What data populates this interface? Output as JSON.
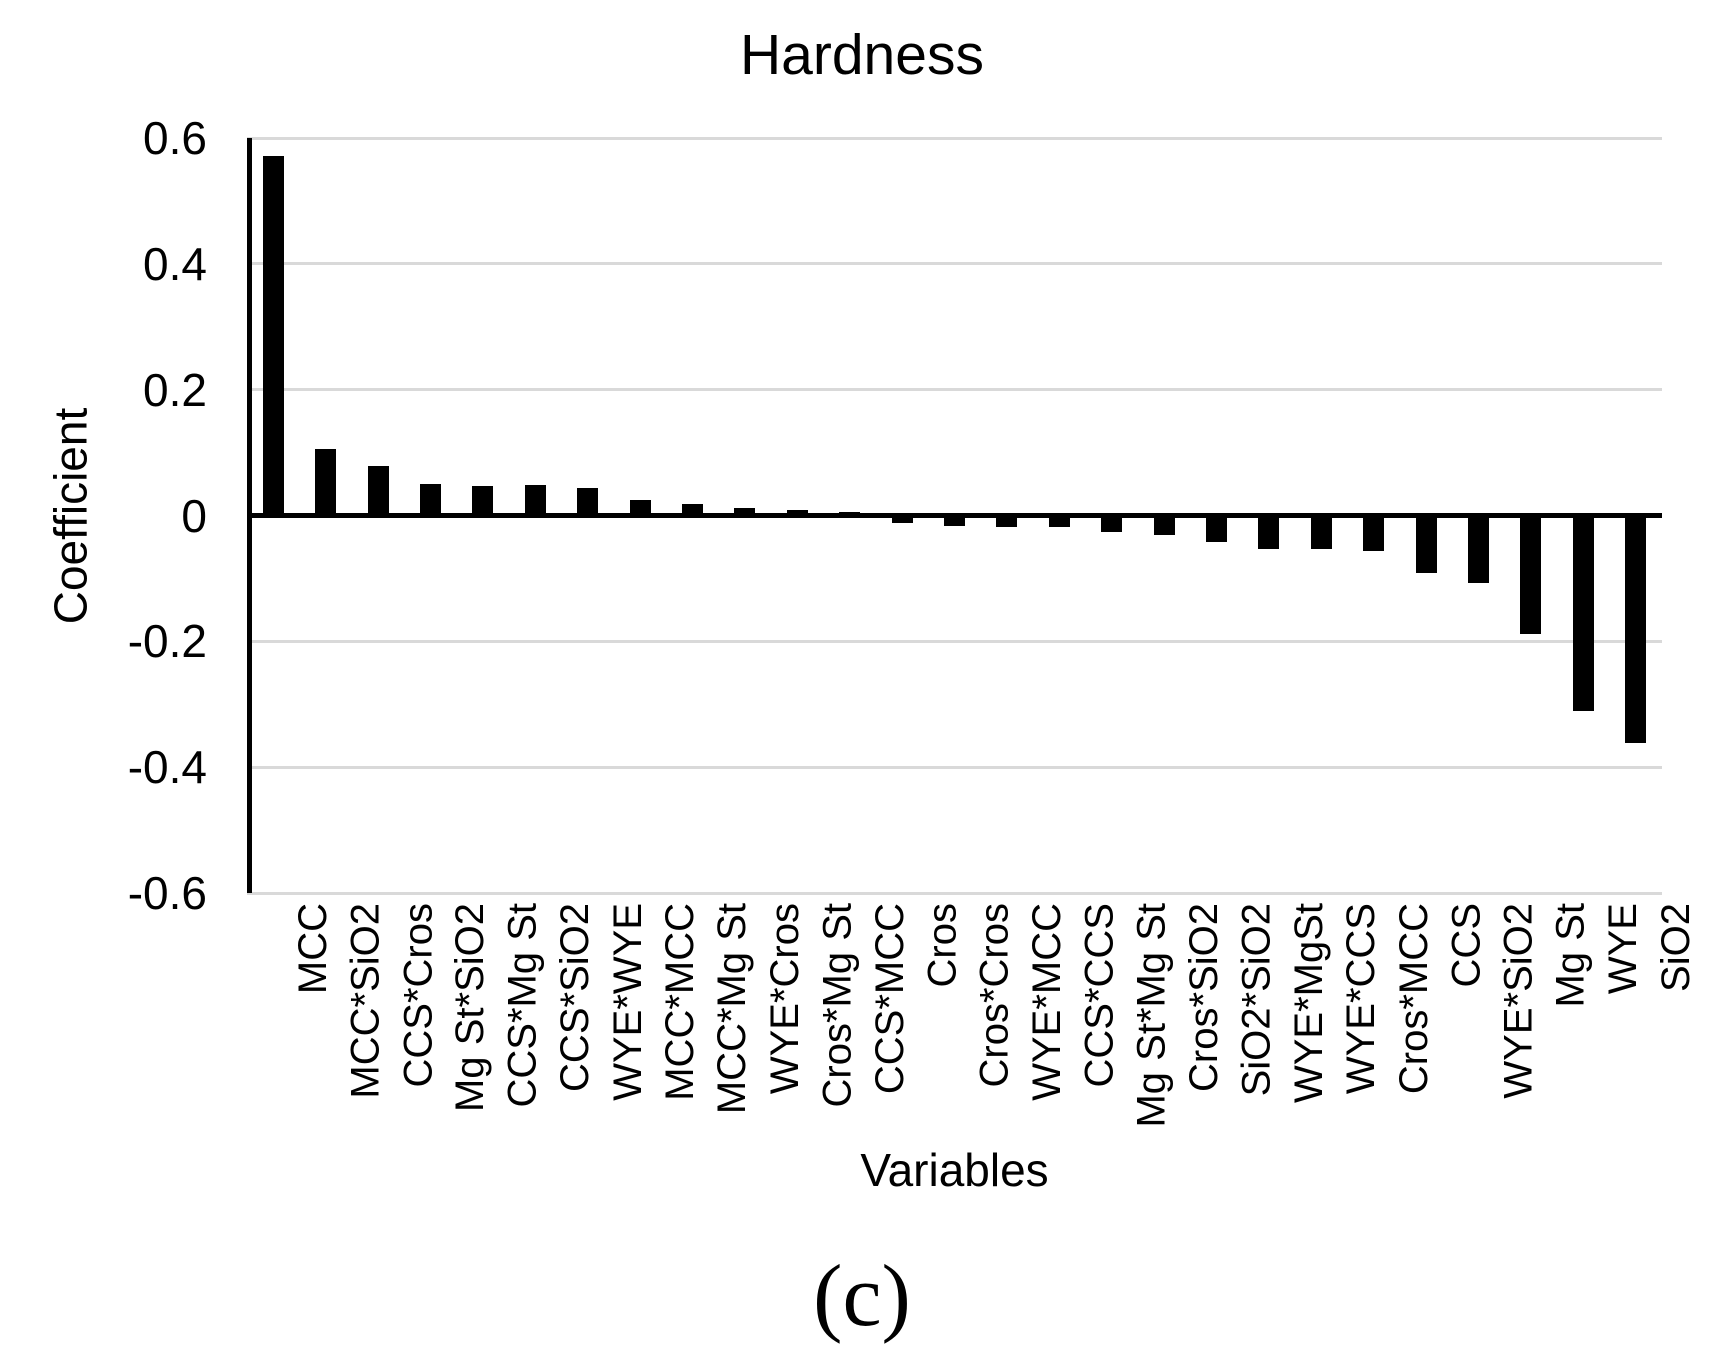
{
  "caption": "(c)",
  "chart_data": {
    "type": "bar",
    "title": "Hardness",
    "xlabel": "Variables",
    "ylabel": "Coefficient",
    "ylim": [
      -0.6,
      0.6
    ],
    "ytick_labels": [
      "0.6",
      "0.4",
      "0.2",
      "0",
      "-0.2",
      "-0.4",
      "-0.6"
    ],
    "ytick_values": [
      0.6,
      0.4,
      0.2,
      0,
      -0.2,
      -0.4,
      -0.6
    ],
    "grid": true,
    "legend_position": "none",
    "bar_color": "#000000",
    "gridline_color": "#d9d9d9",
    "categories": [
      "MCC",
      "MCC*SiO2",
      "CCS*Cros",
      "Mg St*SiO2",
      "CCS*Mg St",
      "CCS*SiO2",
      "WYE*WYE",
      "MCC*MCC",
      "MCC*Mg St",
      "WYE*Cros",
      "Cros*Mg St",
      "CCS*MCC",
      "Cros",
      "Cros*Cros",
      "WYE*MCC",
      "CCS*CCS",
      "Mg St*Mg St",
      "Cros*SiO2",
      "SiO2*SiO2",
      "WYE*MgSt",
      "WYE*CCS",
      "Cros*MCC",
      "CCS",
      "WYE*SiO2",
      "Mg St",
      "WYE",
      "SiO2"
    ],
    "values": [
      0.572,
      0.105,
      0.079,
      0.05,
      0.047,
      0.048,
      0.043,
      0.025,
      0.018,
      0.012,
      0.009,
      0.005,
      -0.008,
      -0.013,
      -0.014,
      -0.014,
      -0.022,
      -0.027,
      -0.038,
      -0.049,
      -0.05,
      -0.052,
      -0.088,
      -0.104,
      -0.185,
      -0.307,
      -0.357
    ]
  }
}
